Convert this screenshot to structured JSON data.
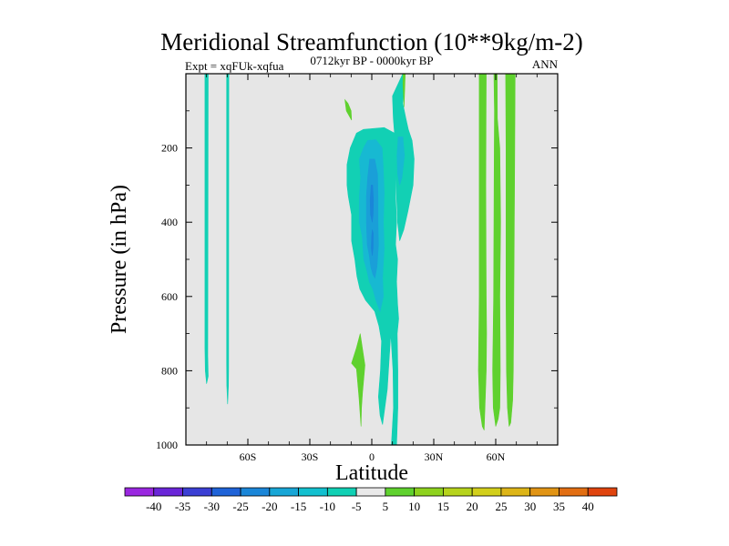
{
  "chart_data": {
    "type": "heatmap",
    "title": "Meridional Streamfunction (10**9kg/m-2)",
    "subtitle_left": "Expt = xqFUk-xqfua",
    "subtitle_center": "0712kyr BP - 0000kyr BP",
    "subtitle_right": "ANN",
    "xlabel": "Latitude",
    "ylabel": "Pressure (in hPa)",
    "xlim": [
      -90,
      90
    ],
    "ylim": [
      1000,
      0
    ],
    "x_ticks": [
      {
        "value": -60,
        "label": "60S"
      },
      {
        "value": -30,
        "label": "30S"
      },
      {
        "value": 0,
        "label": "0"
      },
      {
        "value": 30,
        "label": "30N"
      },
      {
        "value": 60,
        "label": "60N"
      }
    ],
    "y_ticks": [
      {
        "value": 200,
        "label": "200"
      },
      {
        "value": 400,
        "label": "400"
      },
      {
        "value": 600,
        "label": "600"
      },
      {
        "value": 800,
        "label": "800"
      },
      {
        "value": 1000,
        "label": "1000"
      }
    ],
    "background_color": "#e6e6e6",
    "colorbar": {
      "labels": [
        "-40",
        "-35",
        "-30",
        "-25",
        "-20",
        "-15",
        "-10",
        "-5",
        "5",
        "10",
        "15",
        "20",
        "25",
        "30",
        "35",
        "40"
      ],
      "colors": [
        "#9a27e0",
        "#6a25d8",
        "#3b3fd4",
        "#1f63d8",
        "#1a86d8",
        "#17a6d6",
        "#12c0cf",
        "#10d0b4",
        "#e9e9e9",
        "#5fd12e",
        "#8ed21e",
        "#b6d31c",
        "#d2cf1b",
        "#ddb517",
        "#e19414",
        "#e26e12",
        "#e0440e"
      ]
    },
    "regions": [
      {
        "name": "sh-column-a",
        "level": -5,
        "color": "#12d0b4",
        "points": [
          [
            -80.8,
            0
          ],
          [
            -79.2,
            0
          ],
          [
            -79.4,
            760
          ],
          [
            -79.2,
            815
          ],
          [
            -80.0,
            835
          ],
          [
            -80.6,
            800
          ],
          [
            -80.8,
            740
          ]
        ]
      },
      {
        "name": "sh-column-b",
        "level": -5,
        "color": "#12d0b4",
        "points": [
          [
            -70.3,
            0
          ],
          [
            -69.2,
            0
          ],
          [
            -69.3,
            790
          ],
          [
            -69.4,
            840
          ],
          [
            -69.8,
            890
          ],
          [
            -70.2,
            840
          ],
          [
            -70.3,
            780
          ]
        ]
      },
      {
        "name": "eq-cell-outer",
        "level": -5,
        "color": "#12d0b4",
        "points": [
          [
            -4,
            150
          ],
          [
            6,
            145
          ],
          [
            11,
            160
          ],
          [
            11,
            210
          ],
          [
            11.8,
            260
          ],
          [
            11.5,
            330
          ],
          [
            12,
            400
          ],
          [
            11.5,
            460
          ],
          [
            12.5,
            500
          ],
          [
            12,
            560
          ],
          [
            12.5,
            620
          ],
          [
            13,
            660
          ],
          [
            12.3,
            700
          ],
          [
            12.6,
            800
          ],
          [
            12.6,
            900
          ],
          [
            12,
            1000
          ],
          [
            9.5,
            1000
          ],
          [
            10.5,
            900
          ],
          [
            10.3,
            800
          ],
          [
            9.2,
            700
          ],
          [
            8.5,
            760
          ],
          [
            7.5,
            850
          ],
          [
            6.3,
            900
          ],
          [
            5.2,
            945
          ],
          [
            4,
            920
          ],
          [
            3.2,
            870
          ],
          [
            4.2,
            800
          ],
          [
            4.7,
            720
          ],
          [
            3.5,
            680
          ],
          [
            1.4,
            640
          ],
          [
            -3,
            610
          ],
          [
            -5.8,
            580
          ],
          [
            -7.2,
            545
          ],
          [
            -8.2,
            500
          ],
          [
            -9.8,
            450
          ],
          [
            -9.8,
            380
          ],
          [
            -11.4,
            330
          ],
          [
            -12,
            300
          ],
          [
            -12,
            245
          ],
          [
            -10.4,
            200
          ],
          [
            -7.4,
            160
          ]
        ]
      },
      {
        "name": "eq-cell-inner",
        "level": -10,
        "color": "#17b9d2",
        "points": [
          [
            -2,
            180
          ],
          [
            2,
            178
          ],
          [
            5,
            200
          ],
          [
            5.5,
            250
          ],
          [
            6,
            320
          ],
          [
            5.6,
            400
          ],
          [
            6,
            470
          ],
          [
            5.2,
            550
          ],
          [
            5.6,
            600
          ],
          [
            4,
            640
          ],
          [
            2,
            610
          ],
          [
            0.5,
            580
          ],
          [
            -1.2,
            560
          ],
          [
            -2.4,
            530
          ],
          [
            -3.9,
            500
          ],
          [
            -4.6,
            440
          ],
          [
            -6,
            400
          ],
          [
            -6,
            330
          ],
          [
            -5.4,
            280
          ],
          [
            -6,
            230
          ],
          [
            -4,
            200
          ]
        ]
      },
      {
        "name": "eq-cell-core",
        "level": -15,
        "color": "#1a9fd8",
        "points": [
          [
            -1,
            230
          ],
          [
            1.4,
            230
          ],
          [
            2.8,
            270
          ],
          [
            3,
            330
          ],
          [
            3,
            400
          ],
          [
            3.2,
            460
          ],
          [
            2.5,
            520
          ],
          [
            1.5,
            550
          ],
          [
            0.5,
            540
          ],
          [
            -0.5,
            520
          ],
          [
            -1.2,
            490
          ],
          [
            -2.2,
            460
          ],
          [
            -2.6,
            400
          ],
          [
            -2.6,
            330
          ],
          [
            -2,
            280
          ]
        ]
      },
      {
        "name": "eq-cell-peak",
        "level": -20,
        "color": "#1a86d8",
        "points": [
          [
            -0.3,
            300
          ],
          [
            0.4,
            300
          ],
          [
            0.8,
            340
          ],
          [
            0.6,
            380
          ],
          [
            0.2,
            400
          ],
          [
            -0.6,
            380
          ],
          [
            -0.8,
            340
          ]
        ]
      },
      {
        "name": "eq-cell-peak-lower",
        "level": -20,
        "color": "#1a86d8",
        "points": [
          [
            0.2,
            420
          ],
          [
            0.7,
            430
          ],
          [
            0.6,
            470
          ],
          [
            0.2,
            490
          ],
          [
            -0.2,
            470
          ],
          [
            -0.1,
            440
          ]
        ]
      },
      {
        "name": "nh-tropic-lobe",
        "level": -5,
        "color": "#12d0b4",
        "points": [
          [
            10,
            60
          ],
          [
            15,
            0
          ],
          [
            16,
            0
          ],
          [
            15,
            80
          ],
          [
            16.5,
            120
          ],
          [
            17.7,
            150
          ],
          [
            19.5,
            180
          ],
          [
            20.5,
            230
          ],
          [
            20,
            300
          ],
          [
            17.5,
            370
          ],
          [
            15.5,
            420
          ],
          [
            13.5,
            450
          ],
          [
            12.5,
            400
          ],
          [
            12,
            330
          ],
          [
            11.8,
            260
          ],
          [
            11,
            210
          ],
          [
            11,
            160
          ],
          [
            10.4,
            120
          ]
        ]
      },
      {
        "name": "nh-tropic-core",
        "level": -10,
        "color": "#17b9d2",
        "points": [
          [
            12.8,
            170
          ],
          [
            15,
            170
          ],
          [
            15.8,
            220
          ],
          [
            14.6,
            280
          ],
          [
            13.5,
            300
          ],
          [
            12.5,
            270
          ],
          [
            12.2,
            220
          ]
        ]
      },
      {
        "name": "sh-green-blob",
        "level": 5,
        "color": "#5fd12e",
        "points": [
          [
            -9.8,
            125
          ],
          [
            -12.3,
            100
          ],
          [
            -13,
            70
          ],
          [
            -11.5,
            80
          ],
          [
            -10,
            100
          ]
        ]
      },
      {
        "name": "eq-green-diamond",
        "level": 5,
        "color": "#5fd12e",
        "points": [
          [
            -5.6,
            700
          ],
          [
            -3.3,
            785
          ],
          [
            -4.5,
            860
          ],
          [
            -5,
            900
          ],
          [
            -5.2,
            950
          ],
          [
            -6.2,
            870
          ],
          [
            -7.4,
            795
          ],
          [
            -9.8,
            780
          ],
          [
            -7.5,
            740
          ]
        ]
      },
      {
        "name": "eq-green-spike",
        "level": 5,
        "color": "#5fd12e",
        "points": [
          [
            15.1,
            0
          ],
          [
            16.2,
            0
          ],
          [
            16,
            30
          ],
          [
            15.6,
            90
          ],
          [
            15.1,
            30
          ]
        ]
      },
      {
        "name": "nh-green-a",
        "level": 5,
        "color": "#5fd12e",
        "points": [
          [
            52,
            0
          ],
          [
            55.4,
            0
          ],
          [
            55.2,
            300
          ],
          [
            55.4,
            600
          ],
          [
            55.6,
            700
          ],
          [
            55.4,
            800
          ],
          [
            54.8,
            900
          ],
          [
            54.4,
            960
          ],
          [
            53.5,
            950
          ],
          [
            52.2,
            900
          ],
          [
            51.6,
            800
          ],
          [
            52,
            600
          ],
          [
            52,
            300
          ]
        ]
      },
      {
        "name": "nh-green-b",
        "level": 5,
        "color": "#5fd12e",
        "points": [
          [
            59.1,
            0
          ],
          [
            60.7,
            0
          ],
          [
            60.8,
            120
          ],
          [
            62,
            200
          ],
          [
            62.4,
            400
          ],
          [
            62,
            600
          ],
          [
            62.2,
            800
          ],
          [
            62,
            900
          ],
          [
            61.2,
            930
          ],
          [
            60,
            950
          ],
          [
            59.3,
            920
          ],
          [
            58.8,
            900
          ],
          [
            58.5,
            800
          ],
          [
            59,
            600
          ],
          [
            59.2,
            300
          ],
          [
            59.4,
            100
          ]
        ]
      },
      {
        "name": "nh-green-c",
        "level": 5,
        "color": "#5fd12e",
        "points": [
          [
            64.8,
            0
          ],
          [
            69.4,
            0
          ],
          [
            69.2,
            200
          ],
          [
            69,
            400
          ],
          [
            68.8,
            600
          ],
          [
            68.5,
            800
          ],
          [
            68.2,
            880
          ],
          [
            67.3,
            940
          ],
          [
            66.5,
            950
          ],
          [
            65.7,
            900
          ],
          [
            65.2,
            800
          ],
          [
            65,
            600
          ],
          [
            65,
            400
          ],
          [
            65,
            200
          ]
        ]
      }
    ]
  }
}
